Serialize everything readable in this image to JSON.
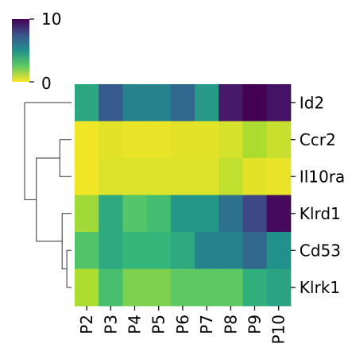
{
  "chart_data": {
    "type": "heatmap",
    "title": "",
    "xlabel": "",
    "ylabel": "",
    "columns": [
      "P2",
      "P3",
      "P4",
      "P5",
      "P6",
      "P7",
      "P8",
      "P9",
      "P10"
    ],
    "rows": [
      "Id2",
      "Ccr2",
      "Il10ra",
      "Klrd1",
      "Cd53",
      "Klrk1"
    ],
    "values": [
      [
        4.3,
        7.2,
        5.6,
        5.6,
        6.6,
        4.7,
        9.2,
        10.0,
        9.4
      ],
      [
        0.2,
        0.4,
        0.3,
        0.3,
        0.4,
        0.4,
        0.6,
        1.2,
        0.8
      ],
      [
        0.2,
        0.5,
        0.5,
        0.5,
        0.5,
        0.5,
        0.9,
        0.4,
        0.3
      ],
      [
        1.4,
        4.2,
        2.8,
        3.3,
        4.8,
        4.8,
        6.3,
        7.8,
        9.7
      ],
      [
        2.9,
        4.2,
        3.8,
        3.8,
        4.2,
        5.6,
        5.6,
        6.6,
        5.0
      ],
      [
        1.2,
        3.2,
        2.0,
        2.0,
        2.5,
        2.5,
        2.5,
        4.0,
        4.4
      ]
    ],
    "colorbar": {
      "min": 0,
      "max": 10,
      "tick_labels": [
        "0",
        "10"
      ],
      "colormap": "viridis_r",
      "position": "top-left"
    },
    "row_dendrogram": {
      "position": "left",
      "order": [
        "Id2",
        "Ccr2",
        "Il10ra",
        "Klrd1",
        "Cd53",
        "Klrk1"
      ],
      "merges": [
        {
          "a": "Ccr2",
          "b": "Il10ra",
          "height": 0.25
        },
        {
          "a": "Cd53",
          "b": "Klrk1",
          "height": 0.1
        },
        {
          "a": "Klrd1",
          "b": "Cd53+Klrk1",
          "height": 0.2
        },
        {
          "a": "Ccr2+Il10ra",
          "b": "Klrd1+Cd53+Klrk1",
          "height": 0.75
        },
        {
          "a": "Id2",
          "b": "Ccr2+Il10ra+Klrd1+Cd53+Klrk1",
          "height": 1.0
        }
      ]
    }
  }
}
